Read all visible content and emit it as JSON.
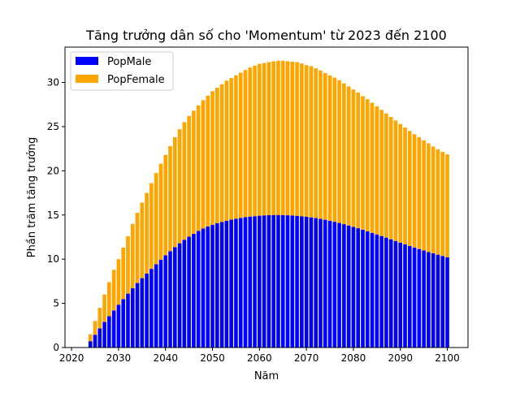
{
  "chart_data": {
    "type": "bar",
    "stacked": true,
    "title": "Tăng trưởng dân số cho 'Momentum' từ 2023 đến 2100",
    "xlabel": "Năm",
    "ylabel": "Phần trăm tăng trưởng",
    "xlim": [
      2018.6,
      2104.4
    ],
    "ylim": [
      0,
      34
    ],
    "xticks": [
      2020,
      2030,
      2040,
      2050,
      2060,
      2070,
      2080,
      2090,
      2100
    ],
    "yticks": [
      0,
      5,
      10,
      15,
      20,
      25,
      30
    ],
    "legend_position": "upper-left",
    "grid": false,
    "x": [
      2023,
      2024,
      2025,
      2026,
      2027,
      2028,
      2029,
      2030,
      2031,
      2032,
      2033,
      2034,
      2035,
      2036,
      2037,
      2038,
      2039,
      2040,
      2041,
      2042,
      2043,
      2044,
      2045,
      2046,
      2047,
      2048,
      2049,
      2050,
      2051,
      2052,
      2053,
      2054,
      2055,
      2056,
      2057,
      2058,
      2059,
      2060,
      2061,
      2062,
      2063,
      2064,
      2065,
      2066,
      2067,
      2068,
      2069,
      2070,
      2071,
      2072,
      2073,
      2074,
      2075,
      2076,
      2077,
      2078,
      2079,
      2080,
      2081,
      2082,
      2083,
      2084,
      2085,
      2086,
      2087,
      2088,
      2089,
      2090,
      2091,
      2092,
      2093,
      2094,
      2095,
      2096,
      2097,
      2098,
      2099,
      2100
    ],
    "series": [
      {
        "name": "PopMale",
        "color": "#0000ff",
        "values": [
          0.0,
          0.72,
          1.45,
          2.17,
          2.89,
          3.55,
          4.2,
          4.85,
          5.48,
          6.1,
          6.72,
          7.3,
          7.85,
          8.38,
          8.9,
          9.42,
          9.93,
          10.43,
          10.9,
          11.35,
          11.8,
          12.2,
          12.55,
          12.88,
          13.2,
          13.46,
          13.7,
          13.9,
          14.08,
          14.22,
          14.35,
          14.47,
          14.57,
          14.67,
          14.75,
          14.82,
          14.87,
          14.92,
          14.96,
          14.98,
          15.0,
          15.0,
          14.99,
          14.97,
          14.95,
          14.91,
          14.86,
          14.8,
          14.73,
          14.65,
          14.56,
          14.46,
          14.35,
          14.23,
          14.1,
          13.96,
          13.81,
          13.66,
          13.5,
          13.33,
          13.16,
          12.98,
          12.8,
          12.62,
          12.44,
          12.25,
          12.06,
          11.87,
          11.68,
          11.5,
          11.32,
          11.15,
          10.98,
          10.82,
          10.66,
          10.51,
          10.36,
          10.22
        ]
      },
      {
        "name": "PopFemale",
        "color": "#ffa500",
        "values": [
          0.0,
          0.78,
          1.55,
          2.33,
          3.11,
          3.85,
          4.6,
          5.15,
          5.82,
          6.5,
          7.28,
          7.95,
          8.55,
          9.12,
          9.7,
          10.33,
          10.87,
          11.37,
          11.9,
          12.45,
          12.9,
          13.3,
          13.65,
          13.92,
          14.2,
          14.54,
          14.8,
          15.1,
          15.32,
          15.58,
          15.85,
          16.03,
          16.23,
          16.43,
          16.65,
          16.88,
          17.03,
          17.18,
          17.24,
          17.32,
          17.4,
          17.45,
          17.46,
          17.43,
          17.4,
          17.39,
          17.29,
          17.15,
          17.12,
          16.95,
          16.79,
          16.59,
          16.45,
          16.32,
          16.15,
          15.94,
          15.74,
          15.54,
          15.35,
          15.12,
          14.94,
          14.72,
          14.5,
          14.28,
          14.06,
          13.85,
          13.64,
          13.43,
          13.22,
          13.0,
          12.81,
          12.65,
          12.47,
          12.28,
          12.09,
          11.94,
          11.79,
          11.63
        ]
      }
    ]
  }
}
